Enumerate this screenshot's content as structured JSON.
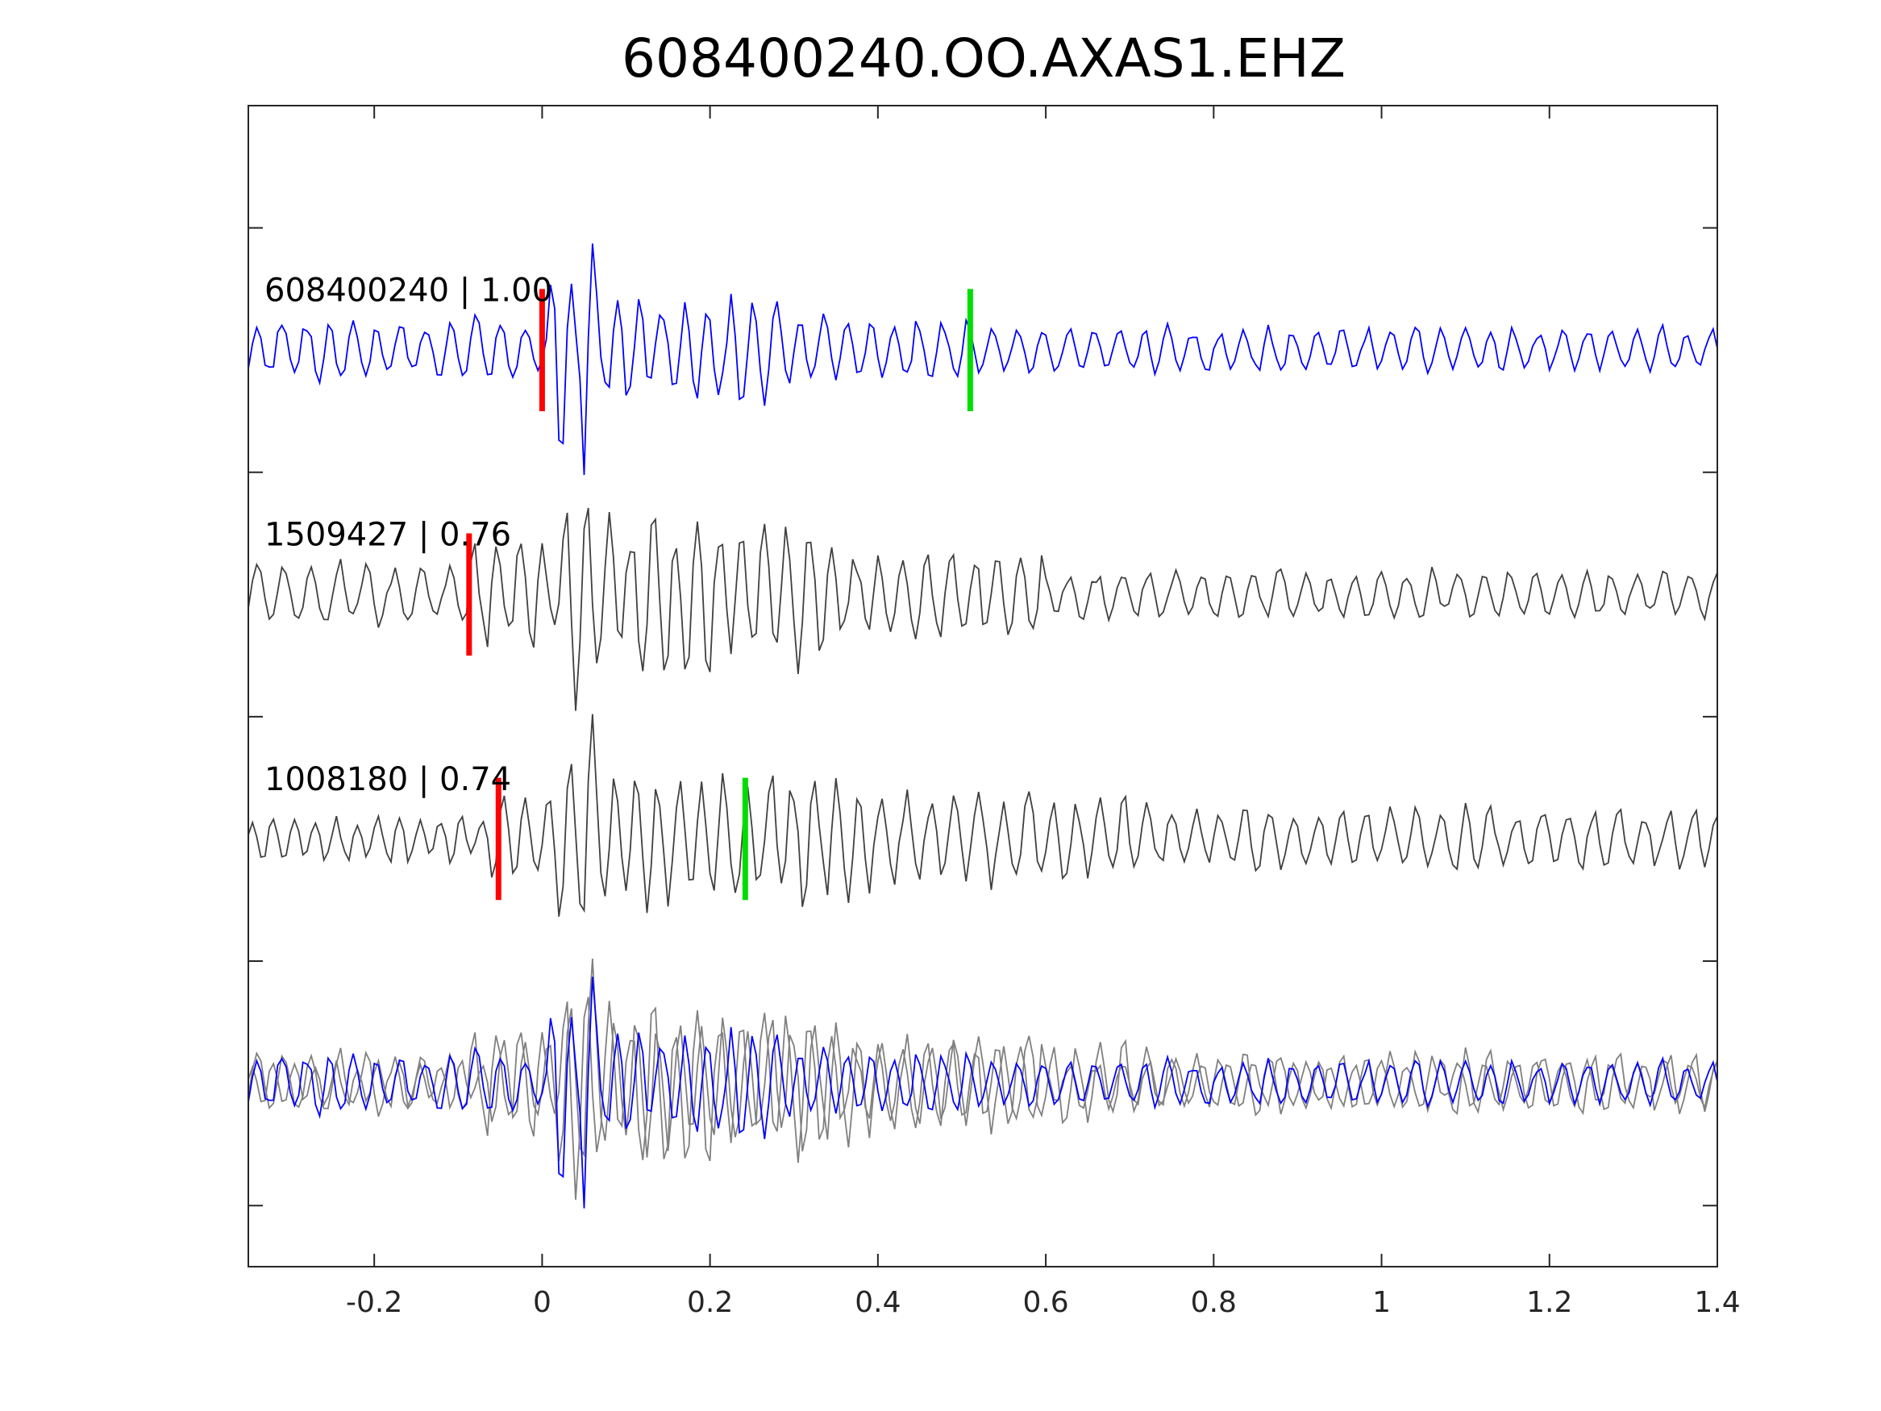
{
  "chart_data": {
    "type": "line",
    "title": "608400240.OO.AXAS1.EHZ",
    "xlabel": "",
    "ylabel": "",
    "xlim": [
      -0.35,
      1.4
    ],
    "ylim": [
      0,
      4.75
    ],
    "x_ticks": [
      -0.2,
      0,
      0.2,
      0.4,
      0.6,
      0.8,
      1,
      1.2,
      1.4
    ],
    "x_tick_labels": [
      "-0.2",
      "0",
      "0.2",
      "0.4",
      "0.6",
      "0.8",
      "1",
      "1.2",
      "1.4"
    ],
    "y_ticks": [
      0.25,
      1.25,
      2.25,
      3.25,
      4.25
    ],
    "grid": false,
    "legend": "none",
    "sample_interval": 0.005,
    "traces": [
      {
        "name": "608400240 | 1.00",
        "label": "608400240 | 1.00",
        "offset": 3.75,
        "color": "#0000ff",
        "picks": [
          {
            "phase": "P",
            "x": 0.0,
            "color": "#ff0000"
          },
          {
            "phase": "S",
            "x": 0.51,
            "color": "#00dd00"
          }
        ],
        "segments": [
          {
            "t0": -0.35,
            "t1": -0.02,
            "amp": 0.14,
            "period": 0.029
          },
          {
            "t0": -0.02,
            "t1": 0.01,
            "amp": 0.12,
            "period": 0.03
          },
          {
            "t0": 0.01,
            "t1": 0.07,
            "amp": 0.5,
            "period": 0.027
          },
          {
            "t0": 0.07,
            "t1": 0.3,
            "amp": 0.24,
            "period": 0.028
          },
          {
            "t0": 0.3,
            "t1": 0.52,
            "amp": 0.14,
            "period": 0.029
          },
          {
            "t0": 0.52,
            "t1": 1.4,
            "amp": 0.1,
            "period": 0.03
          }
        ]
      },
      {
        "name": "1509427 | 0.76",
        "label": "1509427 | 0.76",
        "offset": 2.75,
        "color": "#404040",
        "picks": [
          {
            "phase": "P",
            "x": -0.087,
            "color": "#ff0000"
          }
        ],
        "segments": [
          {
            "t0": -0.35,
            "t1": -0.09,
            "amp": 0.14,
            "period": 0.033
          },
          {
            "t0": -0.09,
            "t1": 0.02,
            "amp": 0.25,
            "period": 0.027
          },
          {
            "t0": 0.02,
            "t1": 0.07,
            "amp": 0.48,
            "period": 0.026
          },
          {
            "t0": 0.07,
            "t1": 0.36,
            "amp": 0.36,
            "period": 0.027
          },
          {
            "t0": 0.36,
            "t1": 0.6,
            "amp": 0.2,
            "period": 0.028
          },
          {
            "t0": 0.6,
            "t1": 1.4,
            "amp": 0.11,
            "period": 0.031
          }
        ]
      },
      {
        "name": "1008180 | 0.74",
        "label": "1008180 | 0.74",
        "offset": 1.75,
        "color": "#404040",
        "picks": [
          {
            "phase": "P",
            "x": -0.052,
            "color": "#ff0000"
          },
          {
            "phase": "S",
            "x": 0.242,
            "color": "#00dd00"
          }
        ],
        "segments": [
          {
            "t0": -0.35,
            "t1": -0.06,
            "amp": 0.1,
            "period": 0.025
          },
          {
            "t0": -0.06,
            "t1": 0.02,
            "amp": 0.2,
            "period": 0.027
          },
          {
            "t0": 0.02,
            "t1": 0.07,
            "amp": 0.48,
            "period": 0.026
          },
          {
            "t0": 0.07,
            "t1": 0.4,
            "amp": 0.28,
            "period": 0.027
          },
          {
            "t0": 0.4,
            "t1": 0.7,
            "amp": 0.2,
            "period": 0.029
          },
          {
            "t0": 0.7,
            "t1": 1.4,
            "amp": 0.14,
            "period": 0.03
          }
        ]
      }
    ],
    "stack": {
      "offset": 0.75,
      "colors": {
        "primary": "#0000ff",
        "other": "#808080"
      }
    }
  }
}
